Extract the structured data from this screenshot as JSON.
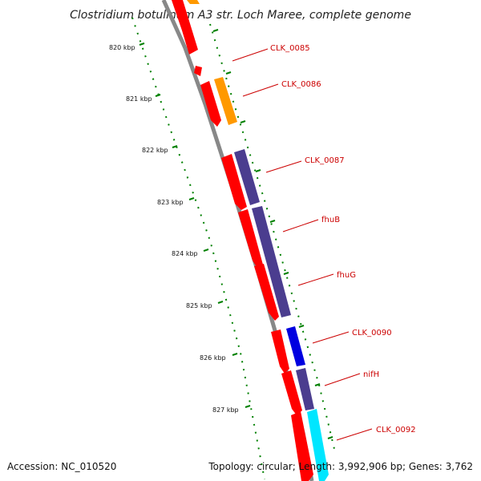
{
  "title": "Clostridium botulinum A3 str. Loch Maree, complete genome",
  "accession": "Accession: NC_010520",
  "topology": "Topology: circular; Length: 3,992,906 bp; Genes: 3,762",
  "colors": {
    "cds": "#ff0000",
    "orange_feature": "#ff9900",
    "slate_feature": "#4b3d8f",
    "blue_feature": "#0000e0",
    "cyan_feature": "#00e6ff",
    "backbone": "#888888",
    "tick": "#008000",
    "label": "#cc0000"
  },
  "ticks": [
    {
      "label": "820 kbp"
    },
    {
      "label": "821 kbp"
    },
    {
      "label": "822 kbp"
    },
    {
      "label": "823 kbp"
    },
    {
      "label": "824 kbp"
    },
    {
      "label": "825 kbp"
    },
    {
      "label": "826 kbp"
    },
    {
      "label": "827 kbp"
    }
  ],
  "gene_labels": [
    {
      "name": "CLK_0085"
    },
    {
      "name": "CLK_0086"
    },
    {
      "name": "CLK_0087"
    },
    {
      "name": "fhuB"
    },
    {
      "name": "fhuG"
    },
    {
      "name": "CLK_0090"
    },
    {
      "name": "nifH"
    },
    {
      "name": "CLK_0092"
    }
  ]
}
